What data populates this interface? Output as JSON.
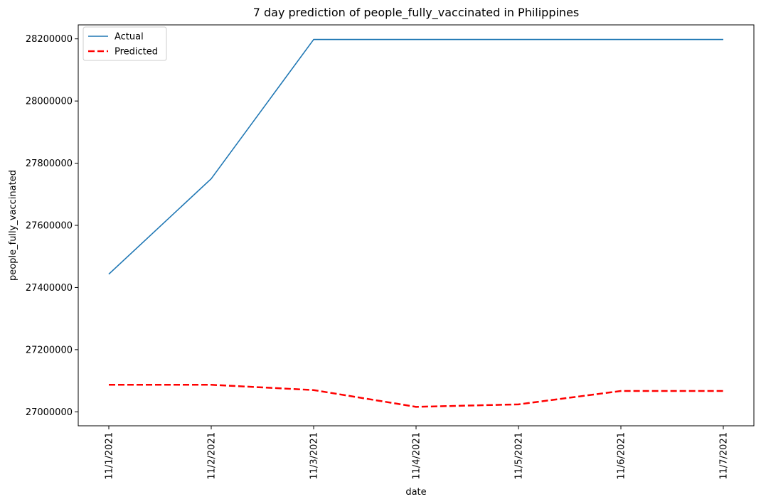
{
  "chart_data": {
    "type": "line",
    "title": "7 day prediction of people_fully_vaccinated in Philippines",
    "xlabel": "date",
    "ylabel": "people_fully_vaccinated",
    "categories": [
      "11/1/2021",
      "11/2/2021",
      "11/3/2021",
      "11/4/2021",
      "11/5/2021",
      "11/6/2021",
      "11/7/2021"
    ],
    "yticks": [
      27000000,
      27200000,
      27400000,
      27600000,
      27800000,
      28000000,
      28200000
    ],
    "ylim": [
      26955000,
      28245000
    ],
    "grid": false,
    "legend_position": "top-left",
    "series": [
      {
        "name": "Actual",
        "color": "#1f77b4",
        "style": "solid",
        "values": [
          27443000,
          27750000,
          28198000,
          28198000,
          28198000,
          28198000,
          28198000
        ]
      },
      {
        "name": "Predicted",
        "color": "#ff0000",
        "style": "dashed",
        "values": [
          27087000,
          27087000,
          27070000,
          27016000,
          27024000,
          27067000,
          27067000
        ]
      }
    ]
  }
}
